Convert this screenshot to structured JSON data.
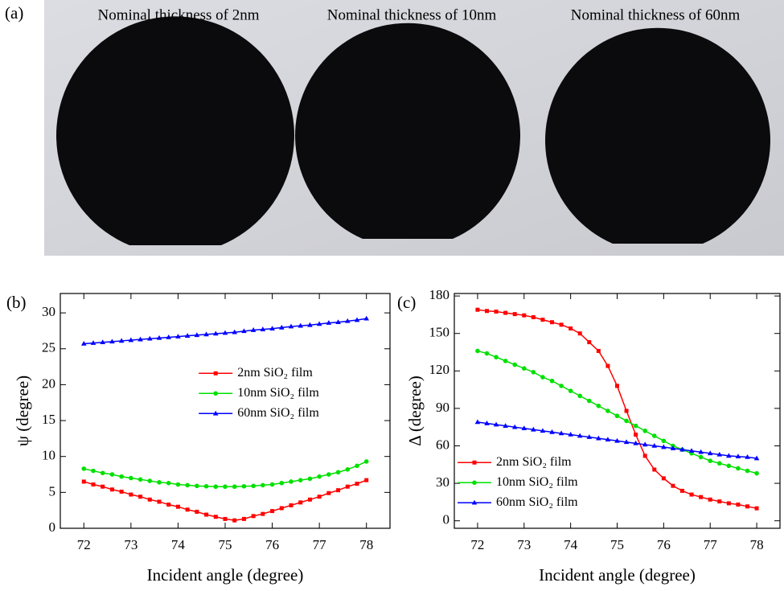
{
  "photo": {
    "panel_label": "(a)",
    "captions": [
      "Nominal thickness of 2nm",
      "Nominal thickness of 10nm",
      "Nominal thickness of 60nm"
    ]
  },
  "chart_data": [
    {
      "type": "line",
      "panel_label": "(b)",
      "x_label": "Incident angle (degree)",
      "y_label": "ψ (degree)",
      "x": [
        72,
        72.2,
        72.4,
        72.6,
        72.8,
        73,
        73.2,
        73.4,
        73.6,
        73.8,
        74,
        74.2,
        74.4,
        74.6,
        74.8,
        75,
        75.2,
        75.4,
        75.6,
        75.8,
        76,
        76.2,
        76.4,
        76.6,
        76.8,
        77,
        77.2,
        77.4,
        77.6,
        77.8,
        78
      ],
      "xlim": [
        71.5,
        78.5
      ],
      "xticks": [
        72,
        73,
        74,
        75,
        76,
        77,
        78
      ],
      "ylim": [
        0,
        32.7
      ],
      "yticks": [
        0,
        5,
        10,
        15,
        20,
        25,
        30
      ],
      "legend": "center right",
      "series": [
        {
          "name": "2nm SiO₂ film",
          "color": "#ff0000",
          "marker": "square",
          "values": [
            6.5,
            6.1,
            5.8,
            5.4,
            5.1,
            4.7,
            4.4,
            4.0,
            3.7,
            3.3,
            3.0,
            2.6,
            2.3,
            1.9,
            1.6,
            1.3,
            1.1,
            1.3,
            1.7,
            2.0,
            2.4,
            2.8,
            3.2,
            3.6,
            4.0,
            4.4,
            4.9,
            5.3,
            5.8,
            6.2,
            6.7
          ]
        },
        {
          "name": "10nm SiO₂ film",
          "color": "#00e000",
          "marker": "circle",
          "values": [
            8.3,
            8.0,
            7.7,
            7.5,
            7.2,
            7.0,
            6.8,
            6.6,
            6.4,
            6.3,
            6.1,
            6.0,
            5.9,
            5.85,
            5.8,
            5.8,
            5.8,
            5.85,
            5.9,
            6.0,
            6.1,
            6.3,
            6.5,
            6.7,
            6.9,
            7.2,
            7.5,
            7.8,
            8.2,
            8.7,
            9.3
          ]
        },
        {
          "name": "60nm SiO₂ film",
          "color": "#0000ff",
          "marker": "triangle",
          "values": [
            25.7,
            25.8,
            25.9,
            26.0,
            26.1,
            26.2,
            26.3,
            26.4,
            26.5,
            26.6,
            26.7,
            26.8,
            26.9,
            27.0,
            27.1,
            27.2,
            27.3,
            27.45,
            27.6,
            27.7,
            27.8,
            27.95,
            28.1,
            28.2,
            28.3,
            28.45,
            28.6,
            28.7,
            28.85,
            29.0,
            29.2
          ]
        }
      ]
    },
    {
      "type": "line",
      "panel_label": "(c)",
      "x_label": "Incident angle (degree)",
      "y_label": "Δ (degree)",
      "x": [
        72,
        72.2,
        72.4,
        72.6,
        72.8,
        73,
        73.2,
        73.4,
        73.6,
        73.8,
        74,
        74.2,
        74.4,
        74.6,
        74.8,
        75,
        75.2,
        75.4,
        75.6,
        75.8,
        76,
        76.2,
        76.4,
        76.6,
        76.8,
        77,
        77.2,
        77.4,
        77.6,
        77.8,
        78
      ],
      "xlim": [
        71.5,
        78.5
      ],
      "xticks": [
        72,
        73,
        74,
        75,
        76,
        77,
        78
      ],
      "ylim": [
        -6,
        182
      ],
      "yticks": [
        0,
        30,
        60,
        90,
        120,
        150,
        180
      ],
      "legend": "lower left",
      "series": [
        {
          "name": "2nm SiO₂ film",
          "color": "#ff0000",
          "marker": "square",
          "values": [
            169,
            168,
            167.5,
            166.5,
            165.5,
            164.5,
            163,
            161,
            159,
            157,
            154,
            150,
            143,
            136,
            124,
            108,
            88,
            69,
            52,
            41,
            34,
            28,
            24,
            21,
            19,
            17,
            15.5,
            14,
            13,
            11.5,
            10
          ]
        },
        {
          "name": "10nm SiO₂ film",
          "color": "#00e000",
          "marker": "circle",
          "values": [
            136,
            134,
            131,
            128,
            125,
            122,
            119,
            115,
            112,
            108,
            104,
            100,
            96,
            92,
            88,
            84,
            80,
            76,
            72,
            68,
            64,
            60,
            57,
            54,
            51,
            48,
            46,
            44,
            42,
            40,
            38
          ]
        },
        {
          "name": "60nm SiO₂ film",
          "color": "#0000ff",
          "marker": "triangle",
          "values": [
            79,
            78,
            77,
            76,
            75,
            74,
            73,
            72,
            71,
            70,
            69,
            68,
            67,
            66,
            65,
            64,
            63,
            62,
            61,
            60,
            59,
            58,
            57,
            56,
            55,
            54,
            53,
            52,
            51.5,
            51,
            50
          ]
        }
      ]
    }
  ]
}
